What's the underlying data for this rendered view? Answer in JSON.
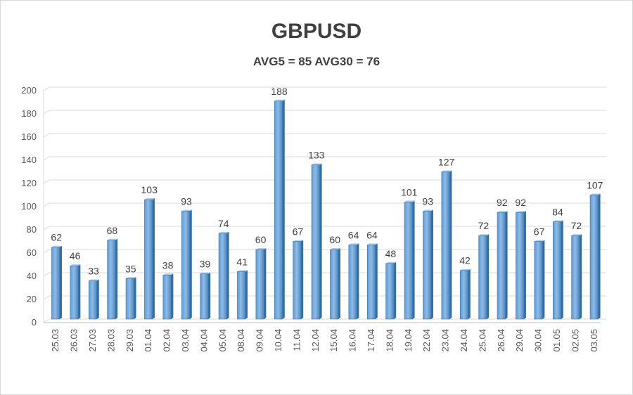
{
  "chart_data": {
    "type": "bar",
    "title": "GBPUSD",
    "subtitle": "AVG5 = 85 AVG30 = 76",
    "xlabel": "",
    "ylabel": "",
    "ylim": [
      0,
      200
    ],
    "yticks": [
      "0",
      "20",
      "40",
      "60",
      "80",
      "100",
      "120",
      "140",
      "160",
      "180",
      "200"
    ],
    "grid": true,
    "legend": "none",
    "bar_color": "#5b9bd5",
    "categories": [
      "25.03",
      "26.03",
      "27.03",
      "28.03",
      "29.03",
      "01.04",
      "02.04",
      "03.04",
      "04.04",
      "05.04",
      "08.04",
      "09.04",
      "10.04",
      "11.04",
      "12.04",
      "15.04",
      "16.04",
      "17.04",
      "18.04",
      "19.04",
      "22.04",
      "23.04",
      "24.04",
      "25.04",
      "26.04",
      "29.04",
      "30.04",
      "01.05",
      "02.05",
      "03.05"
    ],
    "values": [
      62,
      46,
      33,
      68,
      35,
      103,
      38,
      93,
      39,
      74,
      41,
      60,
      188,
      67,
      133,
      60,
      64,
      64,
      48,
      101,
      93,
      127,
      42,
      72,
      92,
      92,
      67,
      84,
      72,
      107
    ]
  }
}
